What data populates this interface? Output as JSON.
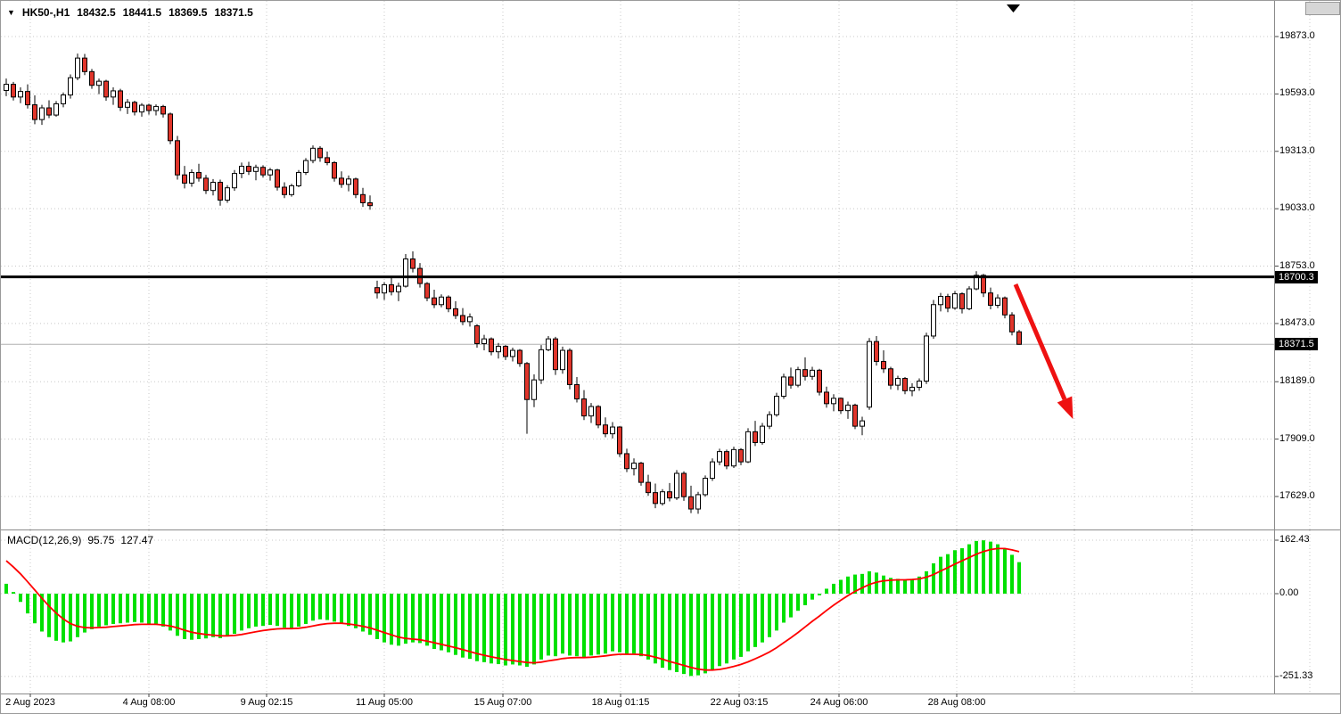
{
  "header": {
    "marker": "▼",
    "symbol": "HK50-,H1",
    "open": "18432.5",
    "high": "18441.5",
    "low": "18369.5",
    "close": "18371.5"
  },
  "price_axis": {
    "labels": [
      "19873.0",
      "19593.0",
      "19313.0",
      "19033.0",
      "18753.0",
      "18473.0",
      "18189.0",
      "17909.0",
      "17629.0"
    ],
    "hline_label": "18700.3",
    "current_price_label": "18371.5"
  },
  "time_axis": {
    "labels": [
      "2 Aug 2023",
      "4 Aug 08:00",
      "9 Aug 02:15",
      "11 Aug 05:00",
      "15 Aug 07:00",
      "18 Aug 01:15",
      "22 Aug 03:15",
      "24 Aug 06:00",
      "28 Aug 08:00"
    ]
  },
  "macd_panel": {
    "label": "MACD(12,26,9)",
    "macd_value": "95.75",
    "signal_value": "127.47",
    "axis_labels": [
      "162.43",
      "0.00",
      "-251.33"
    ]
  },
  "annotations": {
    "horizontal_line_price": 18700.3,
    "trend_arrow": {
      "direction": "down-right",
      "color": "#ee1111"
    }
  },
  "colors": {
    "background": "#ffffff",
    "grid": "#c8c8c8",
    "candle_up": "#ffffff",
    "candle_down": "#e0352b",
    "candle_outline": "#000000",
    "hline": "#000000",
    "macd_histogram": "#00e000",
    "macd_signal": "#ff0000",
    "arrow": "#ee1111",
    "price_tag_bg": "#000000",
    "price_tag_text": "#ffffff"
  },
  "chart_data": [
    {
      "type": "candlestick",
      "title": "HK50-,H1",
      "timeframe": "H1",
      "ylim": [
        17500,
        19960
      ],
      "y_ticks": [
        19873.0,
        19593.0,
        19313.0,
        19033.0,
        18753.0,
        18473.0,
        18189.0,
        17909.0,
        17629.0
      ],
      "x_tick_labels": [
        "2 Aug 2023",
        "4 Aug 08:00",
        "9 Aug 02:15",
        "11 Aug 05:00",
        "15 Aug 07:00",
        "18 Aug 01:15",
        "22 Aug 03:15",
        "24 Aug 06:00",
        "28 Aug 08:00"
      ],
      "horizontal_line": 18700.3,
      "last_price": 18371.5,
      "last_bar_ohlc": [
        18432.5,
        18441.5,
        18369.5,
        18371.5
      ],
      "candles": [
        [
          19610,
          19668,
          19582,
          19640
        ],
        [
          19640,
          19652,
          19561,
          19578
        ],
        [
          19578,
          19625,
          19548,
          19605
        ],
        [
          19605,
          19640,
          19522,
          19540
        ],
        [
          19540,
          19586,
          19445,
          19468
        ],
        [
          19468,
          19540,
          19442,
          19525
        ],
        [
          19525,
          19562,
          19475,
          19490
        ],
        [
          19490,
          19558,
          19482,
          19545
        ],
        [
          19545,
          19600,
          19528,
          19588
        ],
        [
          19588,
          19688,
          19570,
          19672
        ],
        [
          19672,
          19790,
          19660,
          19768
        ],
        [
          19768,
          19788,
          19685,
          19702
        ],
        [
          19702,
          19715,
          19618,
          19635
        ],
        [
          19635,
          19668,
          19592,
          19655
        ],
        [
          19655,
          19662,
          19560,
          19578
        ],
        [
          19578,
          19625,
          19540,
          19608
        ],
        [
          19608,
          19618,
          19510,
          19528
        ],
        [
          19528,
          19568,
          19495,
          19552
        ],
        [
          19552,
          19560,
          19488,
          19505
        ],
        [
          19505,
          19548,
          19482,
          19538
        ],
        [
          19538,
          19545,
          19492,
          19512
        ],
        [
          19512,
          19542,
          19488,
          19532
        ],
        [
          19532,
          19540,
          19478,
          19495
        ],
        [
          19495,
          19502,
          19348,
          19365
        ],
        [
          19365,
          19388,
          19175,
          19198
        ],
        [
          19198,
          19242,
          19132,
          19158
        ],
        [
          19158,
          19225,
          19140,
          19210
        ],
        [
          19210,
          19252,
          19165,
          19182
        ],
        [
          19182,
          19198,
          19105,
          19122
        ],
        [
          19122,
          19178,
          19098,
          19162
        ],
        [
          19162,
          19175,
          19048,
          19075
        ],
        [
          19075,
          19148,
          19062,
          19135
        ],
        [
          19135,
          19222,
          19120,
          19205
        ],
        [
          19205,
          19258,
          19182,
          19240
        ],
        [
          19240,
          19262,
          19198,
          19215
        ],
        [
          19215,
          19248,
          19172,
          19235
        ],
        [
          19235,
          19245,
          19185,
          19198
        ],
        [
          19198,
          19232,
          19170,
          19222
        ],
        [
          19222,
          19228,
          19122,
          19138
        ],
        [
          19138,
          19162,
          19085,
          19102
        ],
        [
          19102,
          19155,
          19092,
          19145
        ],
        [
          19145,
          19222,
          19138,
          19210
        ],
        [
          19210,
          19280,
          19198,
          19268
        ],
        [
          19268,
          19342,
          19255,
          19328
        ],
        [
          19328,
          19338,
          19262,
          19282
        ],
        [
          19282,
          19312,
          19245,
          19258
        ],
        [
          19258,
          19265,
          19165,
          19182
        ],
        [
          19182,
          19215,
          19135,
          19152
        ],
        [
          19152,
          19195,
          19118,
          19178
        ],
        [
          19178,
          19185,
          19085,
          19102
        ],
        [
          19102,
          19135,
          19042,
          19062
        ],
        [
          19062,
          19098,
          19028,
          19048
        ],
        [
          18648,
          18682,
          18595,
          18622
        ],
        [
          18622,
          18675,
          18588,
          18662
        ],
        [
          18662,
          18695,
          18610,
          18628
        ],
        [
          18628,
          18672,
          18582,
          18655
        ],
        [
          18655,
          18812,
          18648,
          18788
        ],
        [
          18788,
          18825,
          18722,
          18742
        ],
        [
          18742,
          18768,
          18648,
          18668
        ],
        [
          18668,
          18675,
          18582,
          18598
        ],
        [
          18598,
          18638,
          18548,
          18565
        ],
        [
          18565,
          18615,
          18552,
          18602
        ],
        [
          18602,
          18610,
          18528,
          18545
        ],
        [
          18545,
          18582,
          18495,
          18512
        ],
        [
          18512,
          18548,
          18465,
          18482
        ],
        [
          18482,
          18522,
          18458,
          18505
        ],
        [
          18462,
          18470,
          18355,
          18375
        ],
        [
          18375,
          18418,
          18342,
          18398
        ],
        [
          18398,
          18405,
          18318,
          18335
        ],
        [
          18335,
          18378,
          18302,
          18362
        ],
        [
          18362,
          18368,
          18295,
          18312
        ],
        [
          18312,
          18355,
          18288,
          18342
        ],
        [
          18342,
          18348,
          18262,
          18278
        ],
        [
          18278,
          18285,
          17935,
          18102
        ],
        [
          18102,
          18225,
          18065,
          18198
        ],
        [
          18198,
          18368,
          18178,
          18345
        ],
        [
          18345,
          18412,
          18338,
          18398
        ],
        [
          18398,
          18408,
          18222,
          18248
        ],
        [
          18248,
          18360,
          18228,
          18342
        ],
        [
          18342,
          18352,
          18152,
          18175
        ],
        [
          18175,
          18212,
          18088,
          18105
        ],
        [
          18105,
          18148,
          18002,
          18022
        ],
        [
          18022,
          18085,
          17988,
          18068
        ],
        [
          18068,
          18075,
          17962,
          17978
        ],
        [
          17978,
          18015,
          17918,
          17935
        ],
        [
          17935,
          17992,
          17912,
          17968
        ],
        [
          17968,
          17972,
          17822,
          17838
        ],
        [
          17838,
          17862,
          17748,
          17765
        ],
        [
          17765,
          17815,
          17732,
          17792
        ],
        [
          17792,
          17798,
          17682,
          17698
        ],
        [
          17698,
          17735,
          17632,
          17648
        ],
        [
          17648,
          17692,
          17572,
          17595
        ],
        [
          17595,
          17665,
          17585,
          17652
        ],
        [
          17652,
          17695,
          17605,
          17622
        ],
        [
          17622,
          17758,
          17612,
          17742
        ],
        [
          17742,
          17752,
          17608,
          17628
        ],
        [
          17628,
          17682,
          17548,
          17568
        ],
        [
          17568,
          17652,
          17545,
          17638
        ],
        [
          17638,
          17732,
          17628,
          17718
        ],
        [
          17718,
          17815,
          17705,
          17798
        ],
        [
          17798,
          17862,
          17782,
          17848
        ],
        [
          17848,
          17858,
          17762,
          17778
        ],
        [
          17778,
          17872,
          17768,
          17858
        ],
        [
          17858,
          17865,
          17782,
          17798
        ],
        [
          17798,
          17962,
          17792,
          17945
        ],
        [
          17945,
          17998,
          17875,
          17892
        ],
        [
          17892,
          17988,
          17882,
          17972
        ],
        [
          17972,
          18045,
          17958,
          18028
        ],
        [
          18028,
          18135,
          18018,
          18118
        ],
        [
          18118,
          18228,
          18105,
          18212
        ],
        [
          18212,
          18258,
          18155,
          18172
        ],
        [
          18172,
          18262,
          18162,
          18248
        ],
        [
          18248,
          18308,
          18195,
          18215
        ],
        [
          18215,
          18262,
          18198,
          18245
        ],
        [
          18245,
          18252,
          18122,
          18138
        ],
        [
          18138,
          18165,
          18062,
          18082
        ],
        [
          18082,
          18128,
          18045,
          18108
        ],
        [
          18108,
          18112,
          18032,
          18048
        ],
        [
          18048,
          18092,
          18008,
          18075
        ],
        [
          18075,
          18082,
          17958,
          17972
        ],
        [
          17972,
          18018,
          17928,
          17998
        ],
        [
          18065,
          18402,
          18052,
          18385
        ],
        [
          18385,
          18412,
          18268,
          18288
        ],
        [
          18288,
          18342,
          18232,
          18252
        ],
        [
          18252,
          18262,
          18152,
          18172
        ],
        [
          18172,
          18218,
          18148,
          18205
        ],
        [
          18205,
          18212,
          18128,
          18145
        ],
        [
          18145,
          18182,
          18118,
          18162
        ],
        [
          18162,
          18205,
          18145,
          18192
        ],
        [
          18192,
          18428,
          18178,
          18412
        ],
        [
          18412,
          18588,
          18398,
          18565
        ],
        [
          18565,
          18622,
          18532,
          18605
        ],
        [
          18605,
          18618,
          18528,
          18548
        ],
        [
          18548,
          18632,
          18540,
          18618
        ],
        [
          18618,
          18625,
          18522,
          18545
        ],
        [
          18545,
          18655,
          18538,
          18642
        ],
        [
          18642,
          18728,
          18635,
          18708
        ],
        [
          18708,
          18715,
          18602,
          18622
        ],
        [
          18622,
          18648,
          18542,
          18562
        ],
        [
          18562,
          18615,
          18548,
          18598
        ],
        [
          18598,
          18605,
          18498,
          18515
        ],
        [
          18515,
          18528,
          18415,
          18432
        ],
        [
          18432.5,
          18441.5,
          18369.5,
          18371.5
        ]
      ]
    },
    {
      "type": "bar",
      "title": "MACD(12,26,9)",
      "current_values": [
        95.75,
        127.47
      ],
      "ylim": [
        -290,
        185
      ],
      "y_ticks": [
        162.43,
        0.0,
        -251.33
      ],
      "histogram": [
        30,
        5,
        -25,
        -60,
        -90,
        -115,
        -132,
        -143,
        -148,
        -145,
        -132,
        -118,
        -108,
        -100,
        -96,
        -92,
        -90,
        -88,
        -86,
        -88,
        -92,
        -95,
        -100,
        -112,
        -128,
        -138,
        -140,
        -138,
        -136,
        -132,
        -135,
        -130,
        -122,
        -112,
        -105,
        -100,
        -98,
        -95,
        -98,
        -103,
        -105,
        -100,
        -92,
        -82,
        -78,
        -80,
        -85,
        -92,
        -98,
        -105,
        -115,
        -125,
        -138,
        -148,
        -155,
        -158,
        -152,
        -148,
        -150,
        -158,
        -168,
        -172,
        -178,
        -186,
        -194,
        -198,
        -205,
        -208,
        -212,
        -214,
        -218,
        -215,
        -218,
        -222,
        -215,
        -200,
        -188,
        -190,
        -182,
        -188,
        -190,
        -192,
        -188,
        -185,
        -182,
        -175,
        -178,
        -185,
        -182,
        -190,
        -200,
        -212,
        -225,
        -232,
        -238,
        -244,
        -250,
        -248,
        -242,
        -232,
        -220,
        -212,
        -200,
        -192,
        -175,
        -162,
        -148,
        -132,
        -112,
        -88,
        -72,
        -52,
        -35,
        -18,
        -5,
        15,
        30,
        42,
        52,
        58,
        60,
        68,
        64,
        55,
        48,
        45,
        42,
        45,
        52,
        68,
        92,
        112,
        120,
        132,
        138,
        150,
        160,
        162,
        158,
        150,
        138,
        118,
        95.75
      ],
      "signal": [
        100,
        81,
        60,
        36,
        11,
        -14,
        -38,
        -59,
        -77,
        -91,
        -99,
        -103,
        -104,
        -103,
        -102,
        -100,
        -98,
        -96,
        -94,
        -93,
        -93,
        -93,
        -95,
        -98,
        -104,
        -111,
        -117,
        -121,
        -124,
        -126,
        -128,
        -128,
        -127,
        -124,
        -120,
        -116,
        -112,
        -109,
        -107,
        -106,
        -106,
        -105,
        -102,
        -98,
        -94,
        -91,
        -90,
        -90,
        -92,
        -95,
        -99,
        -104,
        -111,
        -118,
        -125,
        -132,
        -136,
        -138,
        -140,
        -144,
        -149,
        -154,
        -159,
        -164,
        -170,
        -176,
        -182,
        -187,
        -192,
        -196,
        -200,
        -203,
        -206,
        -209,
        -210,
        -208,
        -204,
        -201,
        -197,
        -195,
        -194,
        -194,
        -193,
        -191,
        -189,
        -186,
        -184,
        -184,
        -184,
        -185,
        -188,
        -193,
        -199,
        -206,
        -212,
        -218,
        -224,
        -229,
        -232,
        -232,
        -230,
        -226,
        -221,
        -215,
        -207,
        -198,
        -188,
        -177,
        -164,
        -149,
        -134,
        -118,
        -101,
        -84,
        -68,
        -51,
        -35,
        -20,
        -6,
        7,
        18,
        28,
        35,
        39,
        41,
        42,
        42,
        43,
        45,
        50,
        58,
        69,
        79,
        90,
        100,
        110,
        120,
        128,
        134,
        137,
        137,
        133,
        127.47
      ]
    }
  ]
}
